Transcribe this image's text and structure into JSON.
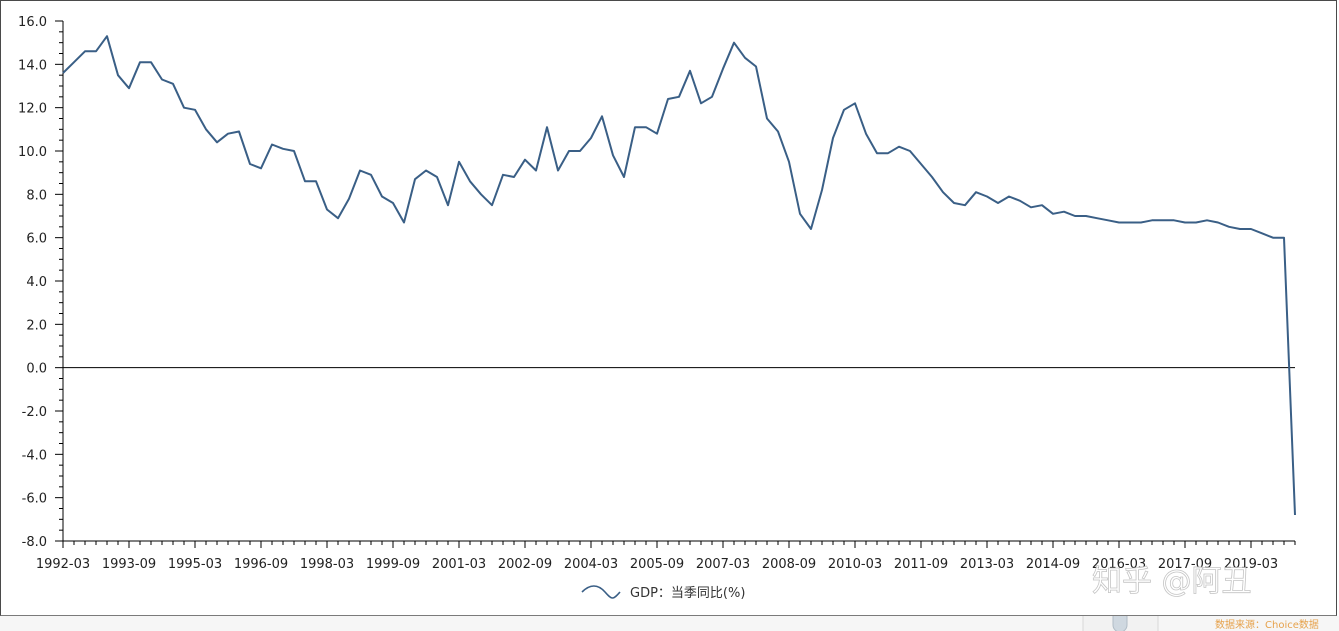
{
  "chart_data": {
    "type": "line",
    "xlabel": "",
    "ylabel": "",
    "ylim": [
      -8,
      16
    ],
    "y_ticks": [
      "16.0",
      "14.0",
      "12.0",
      "10.0",
      "8.0",
      "6.0",
      "4.0",
      "2.0",
      "0.0",
      "-2.0",
      "-4.0",
      "-6.0",
      "-8.0"
    ],
    "x_tick_labels": [
      "1992-03",
      "1993-09",
      "1995-03",
      "1996-09",
      "1998-03",
      "1999-09",
      "2001-03",
      "2002-09",
      "2004-03",
      "2005-09",
      "2007-03",
      "2008-09",
      "2010-03",
      "2011-09",
      "2013-03",
      "2014-09",
      "2016-03",
      "2017-09",
      "2019-03"
    ],
    "grid": false,
    "legend_position": "bottom-center",
    "line_color": "#3a5f86",
    "series": [
      {
        "name": "GDP：当季同比(%)",
        "x": [
          "1992-03",
          "1992-06",
          "1992-09",
          "1992-12",
          "1993-03",
          "1993-06",
          "1993-09",
          "1993-12",
          "1994-03",
          "1994-06",
          "1994-09",
          "1994-12",
          "1995-03",
          "1995-06",
          "1995-09",
          "1995-12",
          "1996-03",
          "1996-06",
          "1996-09",
          "1996-12",
          "1997-03",
          "1997-06",
          "1997-09",
          "1997-12",
          "1998-03",
          "1998-06",
          "1998-09",
          "1998-12",
          "1999-03",
          "1999-06",
          "1999-09",
          "1999-12",
          "2000-03",
          "2000-06",
          "2000-09",
          "2000-12",
          "2001-03",
          "2001-06",
          "2001-09",
          "2001-12",
          "2002-03",
          "2002-06",
          "2002-09",
          "2002-12",
          "2003-03",
          "2003-06",
          "2003-09",
          "2003-12",
          "2004-03",
          "2004-06",
          "2004-09",
          "2004-12",
          "2005-03",
          "2005-06",
          "2005-09",
          "2005-12",
          "2006-03",
          "2006-06",
          "2006-09",
          "2006-12",
          "2007-03",
          "2007-06",
          "2007-09",
          "2007-12",
          "2008-03",
          "2008-06",
          "2008-09",
          "2008-12",
          "2009-03",
          "2009-06",
          "2009-09",
          "2009-12",
          "2010-03",
          "2010-06",
          "2010-09",
          "2010-12",
          "2011-03",
          "2011-06",
          "2011-09",
          "2011-12",
          "2012-03",
          "2012-06",
          "2012-09",
          "2012-12",
          "2013-03",
          "2013-06",
          "2013-09",
          "2013-12",
          "2014-03",
          "2014-06",
          "2014-09",
          "2014-12",
          "2015-03",
          "2015-06",
          "2015-09",
          "2015-12",
          "2016-03",
          "2016-06",
          "2016-09",
          "2016-12",
          "2017-03",
          "2017-06",
          "2017-09",
          "2017-12",
          "2018-03",
          "2018-06",
          "2018-09",
          "2018-12",
          "2019-03",
          "2019-06",
          "2019-09",
          "2019-12",
          "2020-03"
        ],
        "values": [
          13.6,
          14.1,
          14.6,
          14.6,
          15.3,
          13.5,
          12.9,
          14.1,
          14.1,
          13.3,
          13.1,
          12.0,
          11.9,
          11.0,
          10.4,
          10.8,
          10.9,
          9.4,
          9.2,
          10.3,
          10.1,
          10.0,
          8.6,
          8.6,
          7.3,
          6.9,
          7.8,
          9.1,
          8.9,
          7.9,
          7.6,
          6.7,
          8.7,
          9.1,
          8.8,
          7.5,
          9.5,
          8.6,
          8.0,
          7.5,
          8.9,
          8.8,
          9.6,
          9.1,
          11.1,
          9.1,
          10.0,
          10.0,
          10.6,
          11.6,
          9.8,
          8.8,
          11.1,
          11.1,
          10.8,
          12.4,
          12.5,
          13.7,
          12.2,
          12.5,
          13.8,
          15.0,
          14.3,
          13.9,
          11.5,
          10.9,
          9.5,
          7.1,
          6.4,
          8.2,
          10.6,
          11.9,
          12.2,
          10.8,
          9.9,
          9.9,
          10.2,
          10.0,
          9.4,
          8.8,
          8.1,
          7.6,
          7.5,
          8.1,
          7.9,
          7.6,
          7.9,
          7.7,
          7.4,
          7.5,
          7.1,
          7.2,
          7.0,
          7.0,
          6.9,
          6.8,
          6.7,
          6.7,
          6.7,
          6.8,
          6.8,
          6.8,
          6.7,
          6.7,
          6.8,
          6.7,
          6.5,
          6.4,
          6.4,
          6.2,
          6.0,
          6.0,
          -6.8
        ]
      }
    ]
  },
  "watermark": {
    "text": "知乎 @阿丑"
  },
  "source_note": "数据来源：Choice数据"
}
